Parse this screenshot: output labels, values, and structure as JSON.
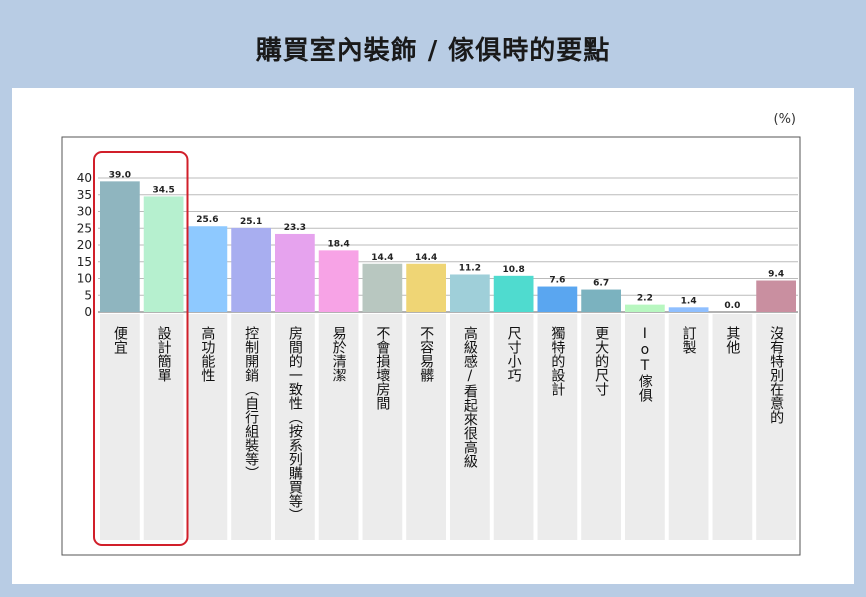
{
  "title": "購買室內裝飾 / 傢俱時的要點",
  "chart_data": {
    "type": "bar",
    "unit": "(%)",
    "ylim": [
      0,
      40
    ],
    "yticks": [
      0,
      5,
      10,
      15,
      20,
      25,
      30,
      35,
      40
    ],
    "grid": true,
    "categories": [
      "便宜",
      "設計簡單",
      "高功能性",
      "控制開銷（自行組裝等）",
      "房間的一致性（按系列購買等）",
      "易於清潔",
      "不會損壞房間",
      "不容易髒",
      "高級感/看起來很高級",
      "尺寸小巧",
      "獨特的設計",
      "更大的尺寸",
      "IoT傢俱",
      "訂製",
      "其他",
      "沒有特別在意的"
    ],
    "values": [
      39.0,
      34.5,
      25.6,
      25.1,
      23.3,
      18.4,
      14.4,
      14.4,
      11.2,
      10.8,
      7.6,
      6.7,
      2.2,
      1.4,
      0.0,
      9.4
    ],
    "value_labels": [
      "39.0",
      "34.5",
      "25.6",
      "25.1",
      "23.3",
      "18.4",
      "14.4",
      "14.4",
      "11.2",
      "10.8",
      "7.6",
      "6.7",
      "2.2",
      "1.4",
      "0.0",
      "9.4"
    ],
    "colors": [
      "#8fb5bf",
      "#b6f0cf",
      "#8ec9ff",
      "#a8aef0",
      "#e6a3ee",
      "#f7a3e6",
      "#b8c7c0",
      "#efd575",
      "#9fcfd9",
      "#4fdbcf",
      "#5aa6f0",
      "#7bb2bf",
      "#b8f7c0",
      "#8fbfff",
      "#cccccc",
      "#c98fa0"
    ],
    "highlight": [
      "便宜",
      "設計簡單"
    ]
  }
}
